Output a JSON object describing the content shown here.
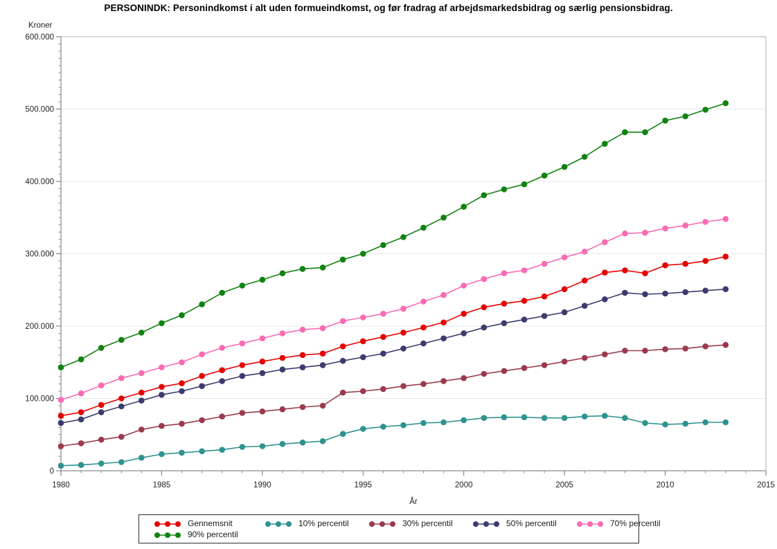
{
  "chart_data": {
    "type": "line",
    "title": "PERSONINDK: Personindkomst i alt uden formueindkomst, og før fradrag af arbejdsmarkedsbidrag og særlig pensionsbidrag.",
    "xlabel": "År",
    "ylabel": "Kroner",
    "xlim": [
      1980,
      2015
    ],
    "ylim": [
      0,
      600000
    ],
    "grid": "horizontal",
    "legend_position": "bottom",
    "x_ticks": [
      1980,
      1985,
      1990,
      1995,
      2000,
      2005,
      2010,
      2015
    ],
    "x_tick_labels": [
      "1980",
      "1985",
      "1990",
      "1995",
      "2000",
      "2005",
      "2010",
      "2015"
    ],
    "x_minor_step": 1,
    "y_ticks": [
      0,
      100000,
      200000,
      300000,
      400000,
      500000,
      600000
    ],
    "y_tick_labels": [
      "0",
      "100.000",
      "200.000",
      "300.000",
      "400.000",
      "500.000",
      "600.000"
    ],
    "y_minor_step": 10000,
    "x": [
      1980,
      1981,
      1982,
      1983,
      1984,
      1985,
      1986,
      1987,
      1988,
      1989,
      1990,
      1991,
      1992,
      1993,
      1994,
      1995,
      1996,
      1997,
      1998,
      1999,
      2000,
      2001,
      2002,
      2003,
      2004,
      2005,
      2006,
      2007,
      2008,
      2009,
      2010,
      2011,
      2012,
      2013
    ],
    "series": [
      {
        "name": "Gennemsnit",
        "color": "#E80000",
        "values": [
          76000,
          81000,
          91000,
          100000,
          108000,
          116000,
          121000,
          131000,
          139000,
          146000,
          151000,
          156000,
          160000,
          162000,
          172000,
          179000,
          185000,
          191000,
          198000,
          205000,
          217000,
          226000,
          231000,
          235000,
          241000,
          251000,
          263000,
          274000,
          277000,
          273000,
          284000,
          286000,
          290000,
          296000
        ]
      },
      {
        "name": "10% percentil",
        "color": "#2E938E",
        "values": [
          7000,
          8000,
          10000,
          12000,
          18000,
          23000,
          25000,
          27000,
          29000,
          33000,
          34000,
          37000,
          39000,
          41000,
          51000,
          58000,
          61000,
          63000,
          66000,
          67000,
          70000,
          73000,
          74000,
          74000,
          73000,
          73000,
          75000,
          76000,
          73000,
          66000,
          64000,
          65000,
          67000,
          67000
        ]
      },
      {
        "name": "30% percentil",
        "color": "#9B3A4D",
        "values": [
          34000,
          38000,
          43000,
          47000,
          57000,
          62000,
          65000,
          70000,
          75000,
          80000,
          82000,
          85000,
          88000,
          90000,
          108000,
          110000,
          113000,
          117000,
          120000,
          124000,
          128000,
          134000,
          138000,
          142000,
          146000,
          151000,
          156000,
          161000,
          166000,
          166000,
          168000,
          169000,
          172000,
          174000
        ]
      },
      {
        "name": "50% percentil",
        "color": "#3B3B6E",
        "values": [
          66000,
          71000,
          81000,
          89000,
          97000,
          105000,
          110000,
          117000,
          124000,
          131000,
          135000,
          140000,
          143000,
          146000,
          152000,
          157000,
          162000,
          169000,
          176000,
          183000,
          190000,
          198000,
          204000,
          209000,
          214000,
          219000,
          228000,
          237000,
          246000,
          244000,
          245000,
          247000,
          249000,
          251000
        ]
      },
      {
        "name": "70% percentil",
        "color": "#F96BB2",
        "values": [
          98000,
          107000,
          118000,
          128000,
          135000,
          143000,
          150000,
          161000,
          170000,
          176000,
          183000,
          190000,
          195000,
          197000,
          207000,
          212000,
          217000,
          224000,
          234000,
          243000,
          256000,
          265000,
          273000,
          277000,
          286000,
          295000,
          303000,
          316000,
          328000,
          329000,
          335000,
          339000,
          344000,
          348000
        ]
      },
      {
        "name": "90% percentil",
        "color": "#118211",
        "values": [
          143000,
          154000,
          170000,
          181000,
          191000,
          204000,
          215000,
          230000,
          246000,
          256000,
          264000,
          273000,
          279000,
          281000,
          292000,
          300000,
          312000,
          323000,
          336000,
          350000,
          365000,
          381000,
          389000,
          396000,
          408000,
          420000,
          434000,
          452000,
          468000,
          468000,
          484000,
          490000,
          499000,
          508000
        ]
      }
    ]
  }
}
